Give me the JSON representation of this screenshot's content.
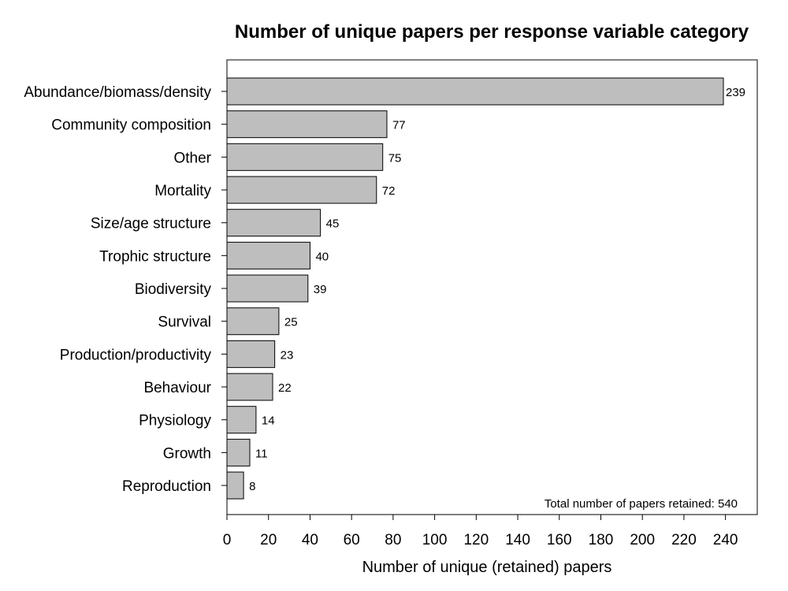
{
  "chart_data": {
    "type": "bar",
    "orientation": "horizontal",
    "title": "Number of unique papers per response variable category",
    "xlabel": "Number of unique (retained) papers",
    "ylabel": "",
    "categories": [
      "Abundance/biomass/density",
      "Community composition",
      "Other",
      "Mortality",
      "Size/age structure",
      "Trophic structure",
      "Biodiversity",
      "Survival",
      "Production/productivity",
      "Behaviour",
      "Physiology",
      "Growth",
      "Reproduction"
    ],
    "values": [
      239,
      77,
      75,
      72,
      45,
      40,
      39,
      25,
      23,
      22,
      14,
      11,
      8
    ],
    "xlim": [
      0,
      255
    ],
    "xticks": [
      0,
      20,
      40,
      60,
      80,
      100,
      120,
      140,
      160,
      180,
      200,
      220,
      240
    ],
    "annotation": "Total number of papers retained: 540",
    "grid": false,
    "bar_color": "#bebebe",
    "bar_edge_color": "#000000"
  }
}
